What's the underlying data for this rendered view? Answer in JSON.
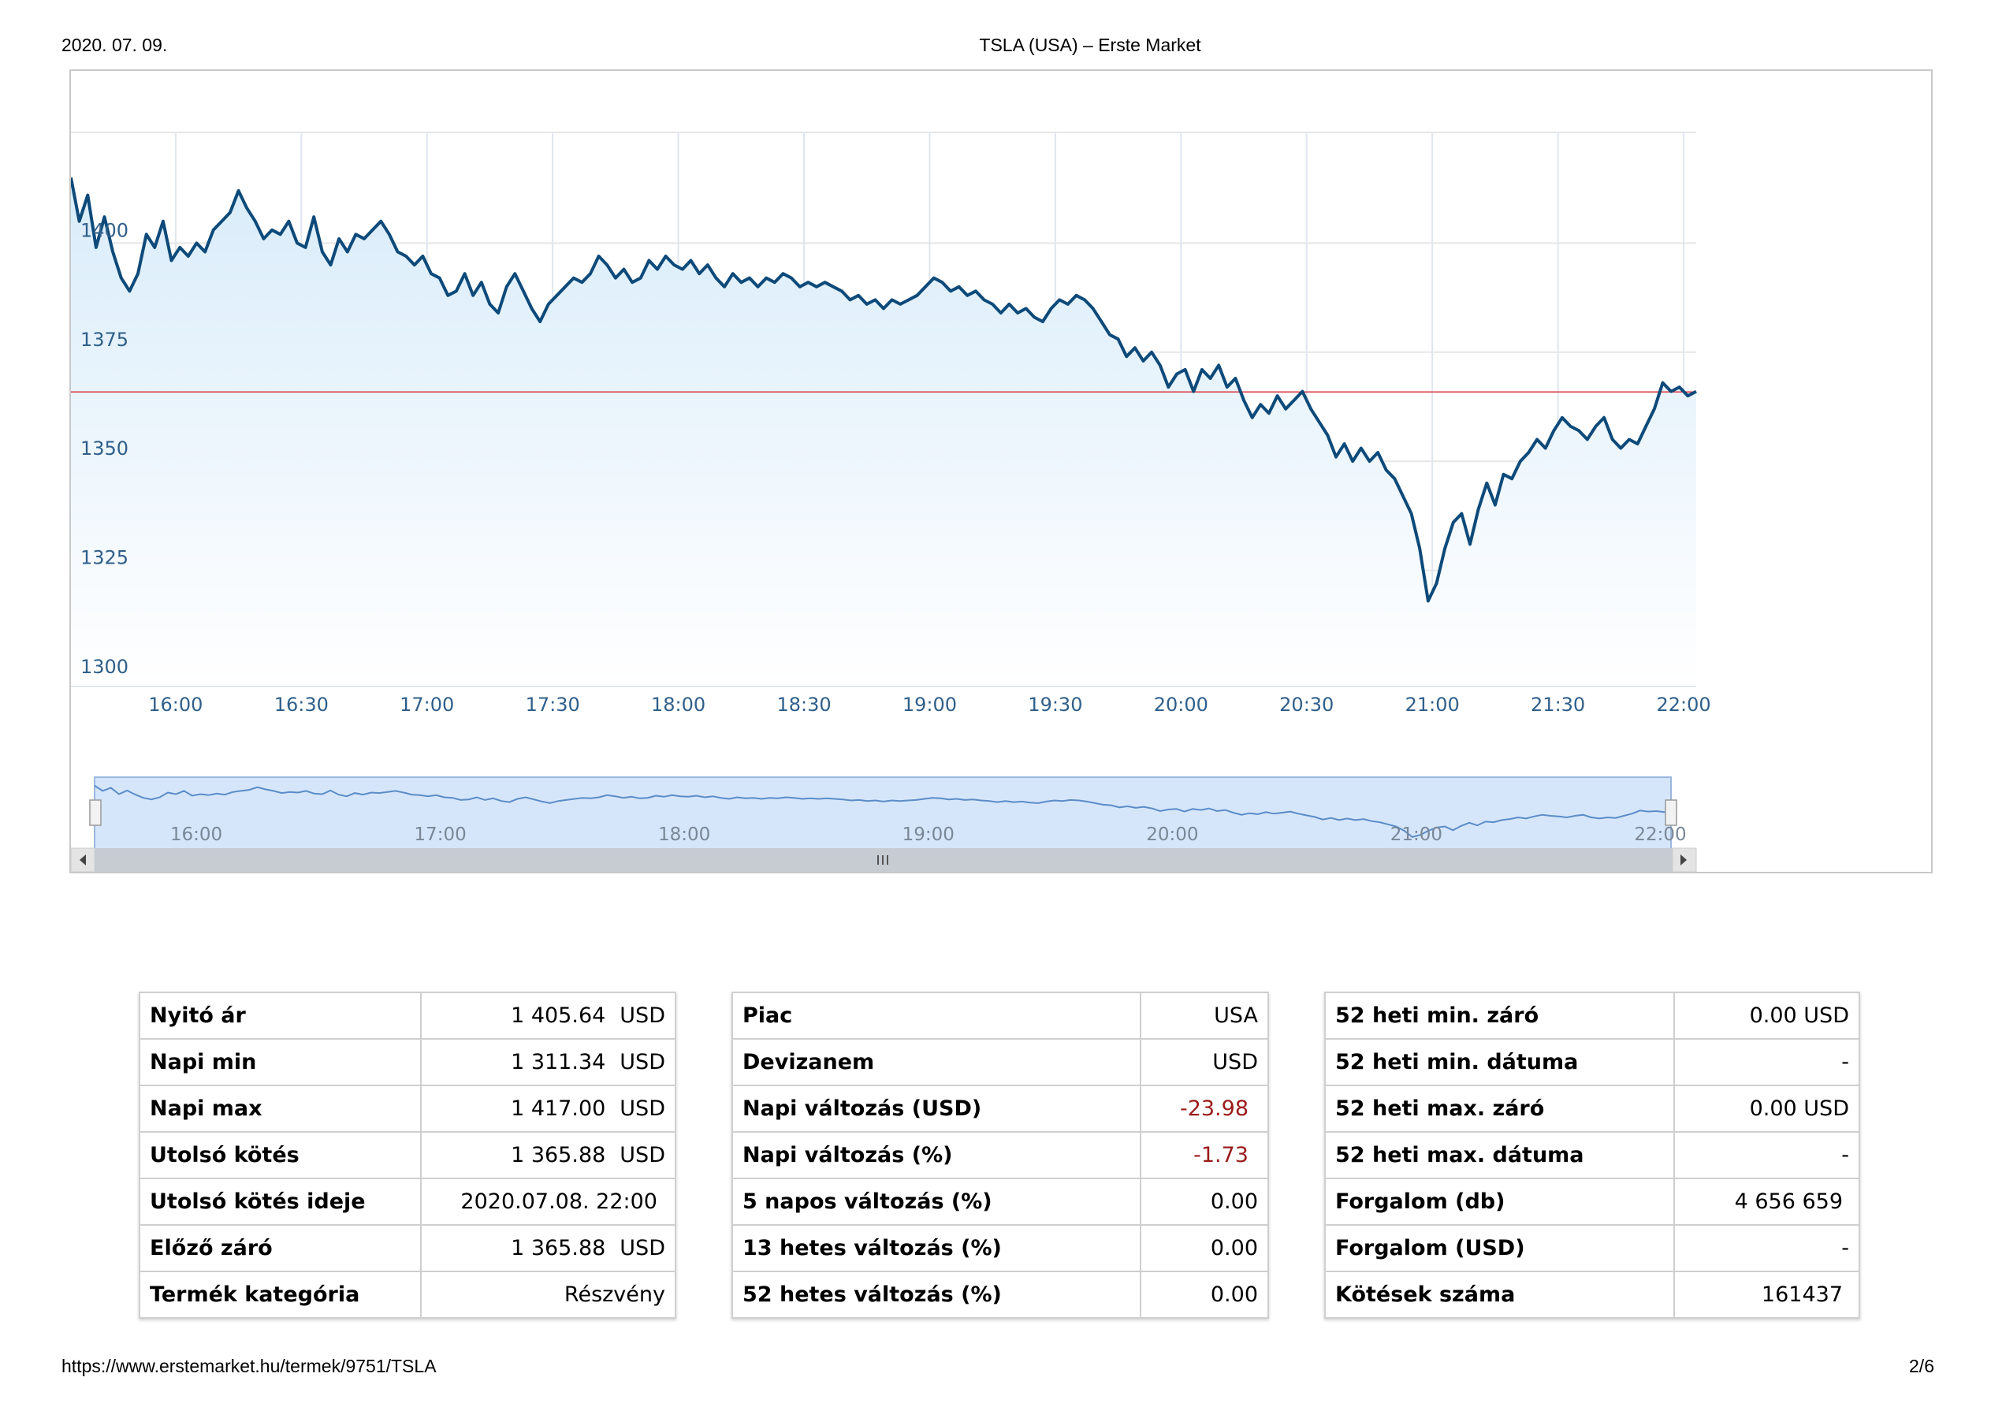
{
  "header": {
    "date": "2020. 07. 09.",
    "title": "TSLA (USA) – Erste Market"
  },
  "footer": {
    "url": "https://www.erstemarket.hu/termek/9751/TSLA",
    "page": "2/6"
  },
  "colors": {
    "line": "#0d4a7a",
    "prev_close_line": "#d9363e",
    "axis_text": "#2f5f8a",
    "negative": "#9b1b1b"
  },
  "chart_data": {
    "type": "area",
    "ylim": [
      1300,
      1425
    ],
    "yticks": [
      "1300",
      "1325",
      "1350",
      "1375",
      "1400"
    ],
    "xticks": [
      "16:00",
      "16:30",
      "17:00",
      "17:30",
      "18:00",
      "18:30",
      "19:00",
      "19:30",
      "20:00",
      "20:30",
      "21:00",
      "21:30",
      "22:00"
    ],
    "x_start": "15:35",
    "x_end": "22:03",
    "reference_line": 1365.88,
    "series": [
      {
        "points": [
          [
            "15:35",
            1415
          ],
          [
            "15:37",
            1405
          ],
          [
            "15:39",
            1411
          ],
          [
            "15:41",
            1399
          ],
          [
            "15:43",
            1406
          ],
          [
            "15:45",
            1398
          ],
          [
            "15:47",
            1392
          ],
          [
            "15:49",
            1389
          ],
          [
            "15:51",
            1393
          ],
          [
            "15:53",
            1402
          ],
          [
            "15:55",
            1399
          ],
          [
            "15:57",
            1405
          ],
          [
            "15:59",
            1396
          ],
          [
            "16:01",
            1399
          ],
          [
            "16:03",
            1397
          ],
          [
            "16:05",
            1400
          ],
          [
            "16:07",
            1398
          ],
          [
            "16:09",
            1403
          ],
          [
            "16:11",
            1405
          ],
          [
            "16:13",
            1407
          ],
          [
            "16:15",
            1412
          ],
          [
            "16:17",
            1408
          ],
          [
            "16:19",
            1405
          ],
          [
            "16:21",
            1401
          ],
          [
            "16:23",
            1403
          ],
          [
            "16:25",
            1402
          ],
          [
            "16:27",
            1405
          ],
          [
            "16:29",
            1400
          ],
          [
            "16:31",
            1399
          ],
          [
            "16:33",
            1406
          ],
          [
            "16:35",
            1398
          ],
          [
            "16:37",
            1395
          ],
          [
            "16:39",
            1401
          ],
          [
            "16:41",
            1398
          ],
          [
            "16:43",
            1402
          ],
          [
            "16:45",
            1401
          ],
          [
            "16:47",
            1403
          ],
          [
            "16:49",
            1405
          ],
          [
            "16:51",
            1402
          ],
          [
            "16:53",
            1398
          ],
          [
            "16:55",
            1397
          ],
          [
            "16:57",
            1395
          ],
          [
            "16:59",
            1397
          ],
          [
            "17:01",
            1393
          ],
          [
            "17:03",
            1392
          ],
          [
            "17:05",
            1388
          ],
          [
            "17:07",
            1389
          ],
          [
            "17:09",
            1393
          ],
          [
            "17:11",
            1388
          ],
          [
            "17:13",
            1391
          ],
          [
            "17:15",
            1386
          ],
          [
            "17:17",
            1384
          ],
          [
            "17:19",
            1390
          ],
          [
            "17:21",
            1393
          ],
          [
            "17:23",
            1389
          ],
          [
            "17:25",
            1385
          ],
          [
            "17:27",
            1382
          ],
          [
            "17:29",
            1386
          ],
          [
            "17:31",
            1388
          ],
          [
            "17:33",
            1390
          ],
          [
            "17:35",
            1392
          ],
          [
            "17:37",
            1391
          ],
          [
            "17:39",
            1393
          ],
          [
            "17:41",
            1397
          ],
          [
            "17:43",
            1395
          ],
          [
            "17:45",
            1392
          ],
          [
            "17:47",
            1394
          ],
          [
            "17:49",
            1391
          ],
          [
            "17:51",
            1392
          ],
          [
            "17:53",
            1396
          ],
          [
            "17:55",
            1394
          ],
          [
            "17:57",
            1397
          ],
          [
            "17:59",
            1395
          ],
          [
            "18:01",
            1394
          ],
          [
            "18:03",
            1396
          ],
          [
            "18:05",
            1393
          ],
          [
            "18:07",
            1395
          ],
          [
            "18:09",
            1392
          ],
          [
            "18:11",
            1390
          ],
          [
            "18:13",
            1393
          ],
          [
            "18:15",
            1391
          ],
          [
            "18:17",
            1392
          ],
          [
            "18:19",
            1390
          ],
          [
            "18:21",
            1392
          ],
          [
            "18:23",
            1391
          ],
          [
            "18:25",
            1393
          ],
          [
            "18:27",
            1392
          ],
          [
            "18:29",
            1390
          ],
          [
            "18:31",
            1391
          ],
          [
            "18:33",
            1390
          ],
          [
            "18:35",
            1391
          ],
          [
            "18:37",
            1390
          ],
          [
            "18:39",
            1389
          ],
          [
            "18:41",
            1387
          ],
          [
            "18:43",
            1388
          ],
          [
            "18:45",
            1386
          ],
          [
            "18:47",
            1387
          ],
          [
            "18:49",
            1385
          ],
          [
            "18:51",
            1387
          ],
          [
            "18:53",
            1386
          ],
          [
            "18:55",
            1387
          ],
          [
            "18:57",
            1388
          ],
          [
            "18:59",
            1390
          ],
          [
            "19:01",
            1392
          ],
          [
            "19:03",
            1391
          ],
          [
            "19:05",
            1389
          ],
          [
            "19:07",
            1390
          ],
          [
            "19:09",
            1388
          ],
          [
            "19:11",
            1389
          ],
          [
            "19:13",
            1387
          ],
          [
            "19:15",
            1386
          ],
          [
            "19:17",
            1384
          ],
          [
            "19:19",
            1386
          ],
          [
            "19:21",
            1384
          ],
          [
            "19:23",
            1385
          ],
          [
            "19:25",
            1383
          ],
          [
            "19:27",
            1382
          ],
          [
            "19:29",
            1385
          ],
          [
            "19:31",
            1387
          ],
          [
            "19:33",
            1386
          ],
          [
            "19:35",
            1388
          ],
          [
            "19:37",
            1387
          ],
          [
            "19:39",
            1385
          ],
          [
            "19:41",
            1382
          ],
          [
            "19:43",
            1379
          ],
          [
            "19:45",
            1378
          ],
          [
            "19:47",
            1374
          ],
          [
            "19:49",
            1376
          ],
          [
            "19:51",
            1373
          ],
          [
            "19:53",
            1375
          ],
          [
            "19:55",
            1372
          ],
          [
            "19:57",
            1367
          ],
          [
            "19:59",
            1370
          ],
          [
            "20:01",
            1371
          ],
          [
            "20:03",
            1366
          ],
          [
            "20:05",
            1371
          ],
          [
            "20:07",
            1369
          ],
          [
            "20:09",
            1372
          ],
          [
            "20:11",
            1367
          ],
          [
            "20:13",
            1369
          ],
          [
            "20:15",
            1364
          ],
          [
            "20:17",
            1360
          ],
          [
            "20:19",
            1363
          ],
          [
            "20:21",
            1361
          ],
          [
            "20:23",
            1365
          ],
          [
            "20:25",
            1362
          ],
          [
            "20:27",
            1364
          ],
          [
            "20:29",
            1366
          ],
          [
            "20:31",
            1362
          ],
          [
            "20:33",
            1359
          ],
          [
            "20:35",
            1356
          ],
          [
            "20:37",
            1351
          ],
          [
            "20:39",
            1354
          ],
          [
            "20:41",
            1350
          ],
          [
            "20:43",
            1353
          ],
          [
            "20:45",
            1350
          ],
          [
            "20:47",
            1352
          ],
          [
            "20:49",
            1348
          ],
          [
            "20:51",
            1346
          ],
          [
            "20:53",
            1342
          ],
          [
            "20:55",
            1338
          ],
          [
            "20:57",
            1330
          ],
          [
            "20:59",
            1318
          ],
          [
            "21:01",
            1322
          ],
          [
            "21:03",
            1330
          ],
          [
            "21:05",
            1336
          ],
          [
            "21:07",
            1338
          ],
          [
            "21:09",
            1331
          ],
          [
            "21:11",
            1339
          ],
          [
            "21:13",
            1345
          ],
          [
            "21:15",
            1340
          ],
          [
            "21:17",
            1347
          ],
          [
            "21:19",
            1346
          ],
          [
            "21:21",
            1350
          ],
          [
            "21:23",
            1352
          ],
          [
            "21:25",
            1355
          ],
          [
            "21:27",
            1353
          ],
          [
            "21:29",
            1357
          ],
          [
            "21:31",
            1360
          ],
          [
            "21:33",
            1358
          ],
          [
            "21:35",
            1357
          ],
          [
            "21:37",
            1355
          ],
          [
            "21:39",
            1358
          ],
          [
            "21:41",
            1360
          ],
          [
            "21:43",
            1355
          ],
          [
            "21:45",
            1353
          ],
          [
            "21:47",
            1355
          ],
          [
            "21:49",
            1354
          ],
          [
            "21:51",
            1358
          ],
          [
            "21:53",
            1362
          ],
          [
            "21:55",
            1368
          ],
          [
            "21:57",
            1366
          ],
          [
            "21:59",
            1367
          ],
          [
            "22:01",
            1365
          ],
          [
            "22:03",
            1366
          ]
        ]
      }
    ],
    "navigator": {
      "xticks": [
        "16:00",
        "17:00",
        "18:00",
        "19:00",
        "20:00",
        "21:00",
        "22:00"
      ]
    }
  },
  "tables": {
    "left": [
      {
        "label": "Nyitó ár",
        "value": "1 405.64",
        "unit": "USD"
      },
      {
        "label": "Napi min",
        "value": "1 311.34",
        "unit": "USD"
      },
      {
        "label": "Napi max",
        "value": "1 417.00",
        "unit": "USD"
      },
      {
        "label": "Utolsó kötés",
        "value": "1 365.88",
        "unit": "USD"
      },
      {
        "label": "Utolsó kötés ideje",
        "value": "2020.07.08. 22:00",
        "unit": ""
      },
      {
        "label": "Előző záró",
        "value": "1 365.88",
        "unit": "USD"
      },
      {
        "label": "Termék kategória",
        "value": "Részvény",
        "unit": ""
      }
    ],
    "middle": [
      {
        "label": "Piac",
        "value": "USA"
      },
      {
        "label": "Devizanem",
        "value": "USD"
      },
      {
        "label": "Napi változás (USD)",
        "value": "-23.98"
      },
      {
        "label": "Napi változás (%)",
        "value": "-1.73"
      },
      {
        "label": "5 napos változás (%)",
        "value": "0.00"
      },
      {
        "label": "13 hetes változás (%)",
        "value": "0.00"
      },
      {
        "label": "52 hetes változás (%)",
        "value": "0.00"
      }
    ],
    "right": [
      {
        "label": "52 heti min. záró",
        "value": "0.00 USD"
      },
      {
        "label": "52 heti min. dátuma",
        "value": "-"
      },
      {
        "label": "52 heti max. záró",
        "value": "0.00 USD"
      },
      {
        "label": "52 heti max. dátuma",
        "value": "-"
      },
      {
        "label": "Forgalom (db)",
        "value": "4 656 659"
      },
      {
        "label": "Forgalom (USD)",
        "value": "-"
      },
      {
        "label": "Kötések száma",
        "value": "161437"
      }
    ]
  }
}
